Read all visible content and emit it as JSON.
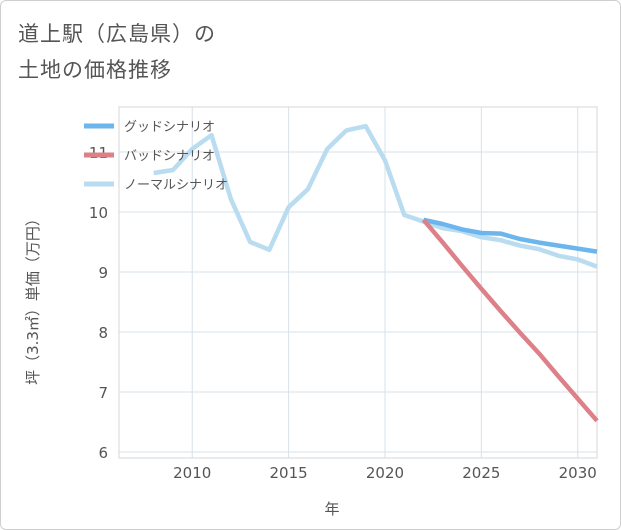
{
  "title_line1": "道上駅（広島県）の",
  "title_line2": "土地の価格推移",
  "chart_data": {
    "type": "line",
    "xlabel": "年",
    "ylabel": "坪（3.3㎡）単価（万円）",
    "xlim": [
      2006.2,
      2031
    ],
    "ylim": [
      5.9,
      11.75
    ],
    "x_ticks": [
      2010,
      2015,
      2020,
      2025,
      2030
    ],
    "y_ticks": [
      6,
      7,
      8,
      9,
      10,
      11
    ],
    "grid": true,
    "legend_position": "top-left",
    "series": [
      {
        "name": "グッドシナリオ",
        "color": "#6cb6ee",
        "x": [
          2022,
          2023,
          2024,
          2025,
          2026,
          2027,
          2028,
          2029,
          2030,
          2031
        ],
        "y": [
          9.87,
          9.8,
          9.71,
          9.65,
          9.64,
          9.55,
          9.49,
          9.44,
          9.39,
          9.34
        ]
      },
      {
        "name": "バッドシナリオ",
        "color": "#dd8088",
        "x": [
          2022,
          2023,
          2024,
          2025,
          2026,
          2027,
          2028,
          2029,
          2030,
          2031
        ],
        "y": [
          9.87,
          9.49,
          9.1,
          8.72,
          8.35,
          7.99,
          7.64,
          7.26,
          6.89,
          6.52
        ]
      },
      {
        "name": "ノーマルシナリオ",
        "color": "#b9dcf0",
        "x": [
          2008,
          2009,
          2010,
          2011,
          2012,
          2013,
          2014,
          2015,
          2016,
          2017,
          2018,
          2019,
          2020,
          2021,
          2022,
          2023,
          2024,
          2025,
          2026,
          2027,
          2028,
          2029,
          2030,
          2031
        ],
        "y": [
          10.65,
          10.7,
          11.05,
          11.28,
          10.22,
          9.5,
          9.37,
          10.08,
          10.38,
          11.05,
          11.36,
          11.43,
          10.86,
          9.95,
          9.84,
          9.73,
          9.68,
          9.58,
          9.53,
          9.44,
          9.38,
          9.27,
          9.21,
          9.09
        ]
      }
    ]
  }
}
